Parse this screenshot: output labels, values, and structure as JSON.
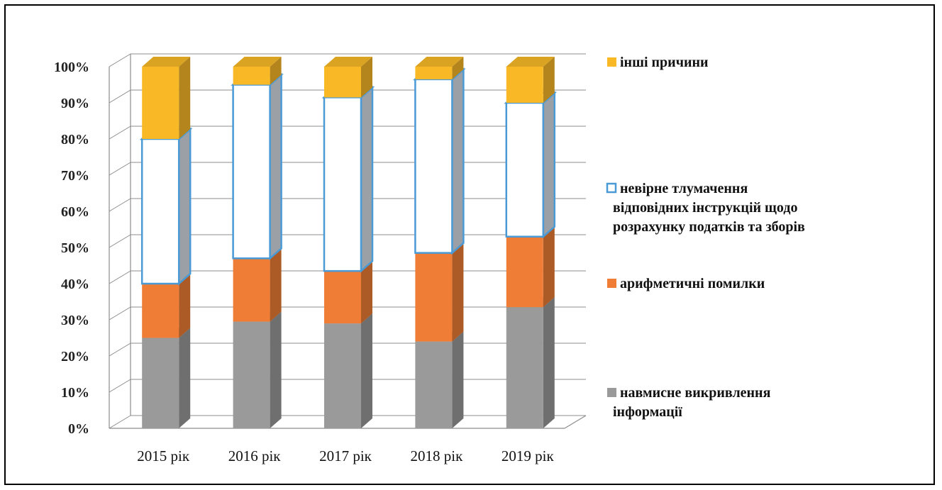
{
  "chart_data": {
    "type": "bar",
    "stacked": true,
    "three_d": true,
    "categories": [
      "2015 рік",
      "2016 рік",
      "2017 рік",
      "2018 рік",
      "2019 рік"
    ],
    "series": [
      {
        "name": "навмисне викривлення інформації",
        "color": "#9a9a9a",
        "values": [
          25,
          29.5,
          29,
          24,
          33.5
        ]
      },
      {
        "name": "арифметичні помилки",
        "color": "#ef7d35",
        "values": [
          15,
          17.5,
          14.5,
          24.5,
          19.5
        ]
      },
      {
        "name": "невірне тлумачення відповідних інструкцій щодо розрахунку податків та зборів",
        "color": "#ffffff",
        "stroke": "#4a9ad6",
        "values": [
          40,
          48,
          48,
          48,
          37
        ]
      },
      {
        "name": "інші причини",
        "color": "#f9b927",
        "values": [
          20,
          5,
          8.5,
          3.5,
          10
        ]
      }
    ],
    "y_ticks": [
      "0%",
      "10%",
      "20%",
      "30%",
      "40%",
      "50%",
      "60%",
      "70%",
      "80%",
      "90%",
      "100%"
    ],
    "ylim": [
      0,
      100
    ],
    "grid": true,
    "legend_position": "right",
    "legend": [
      {
        "lines": [
          "інші причини"
        ]
      },
      {
        "lines": [
          "невірне тлумачення",
          "відповідних інструкцій щодо",
          "розрахунку  податків та зборів"
        ]
      },
      {
        "lines": [
          "арифметичні помилки"
        ]
      },
      {
        "lines": [
          "навмисне викривлення",
          "інформації"
        ]
      }
    ]
  }
}
